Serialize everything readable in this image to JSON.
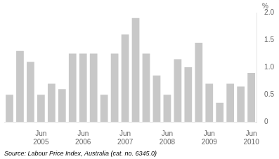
{
  "chart_data": {
    "type": "bar",
    "ylabel": "%",
    "source": "Source: Labour Price Index, Australia (cat. no. 6345.0)",
    "categories": [
      null,
      null,
      null,
      "Jun\n2005",
      null,
      null,
      null,
      "Jun\n2006",
      null,
      null,
      null,
      "Jun\n2007",
      null,
      null,
      null,
      "Jun\n2008",
      null,
      null,
      null,
      "Jun\n2009",
      null,
      null,
      null,
      "Jun\n2010"
    ],
    "values": [
      0.5,
      1.3,
      1.1,
      0.5,
      0.7,
      0.6,
      1.25,
      1.25,
      1.25,
      0.5,
      1.25,
      1.6,
      1.9,
      1.25,
      0.85,
      0.5,
      1.15,
      1.0,
      1.45,
      0.7,
      0.35,
      0.7,
      0.65,
      0.9
    ],
    "color": "#c8c8c8",
    "ylim": [
      0,
      2.0
    ],
    "yticks": [
      0,
      0.5,
      {
        "value": 1.0,
        "label": "1.0"
      },
      1.5,
      {
        "value": 2.0,
        "label": "2.0"
      }
    ],
    "grid": false
  }
}
